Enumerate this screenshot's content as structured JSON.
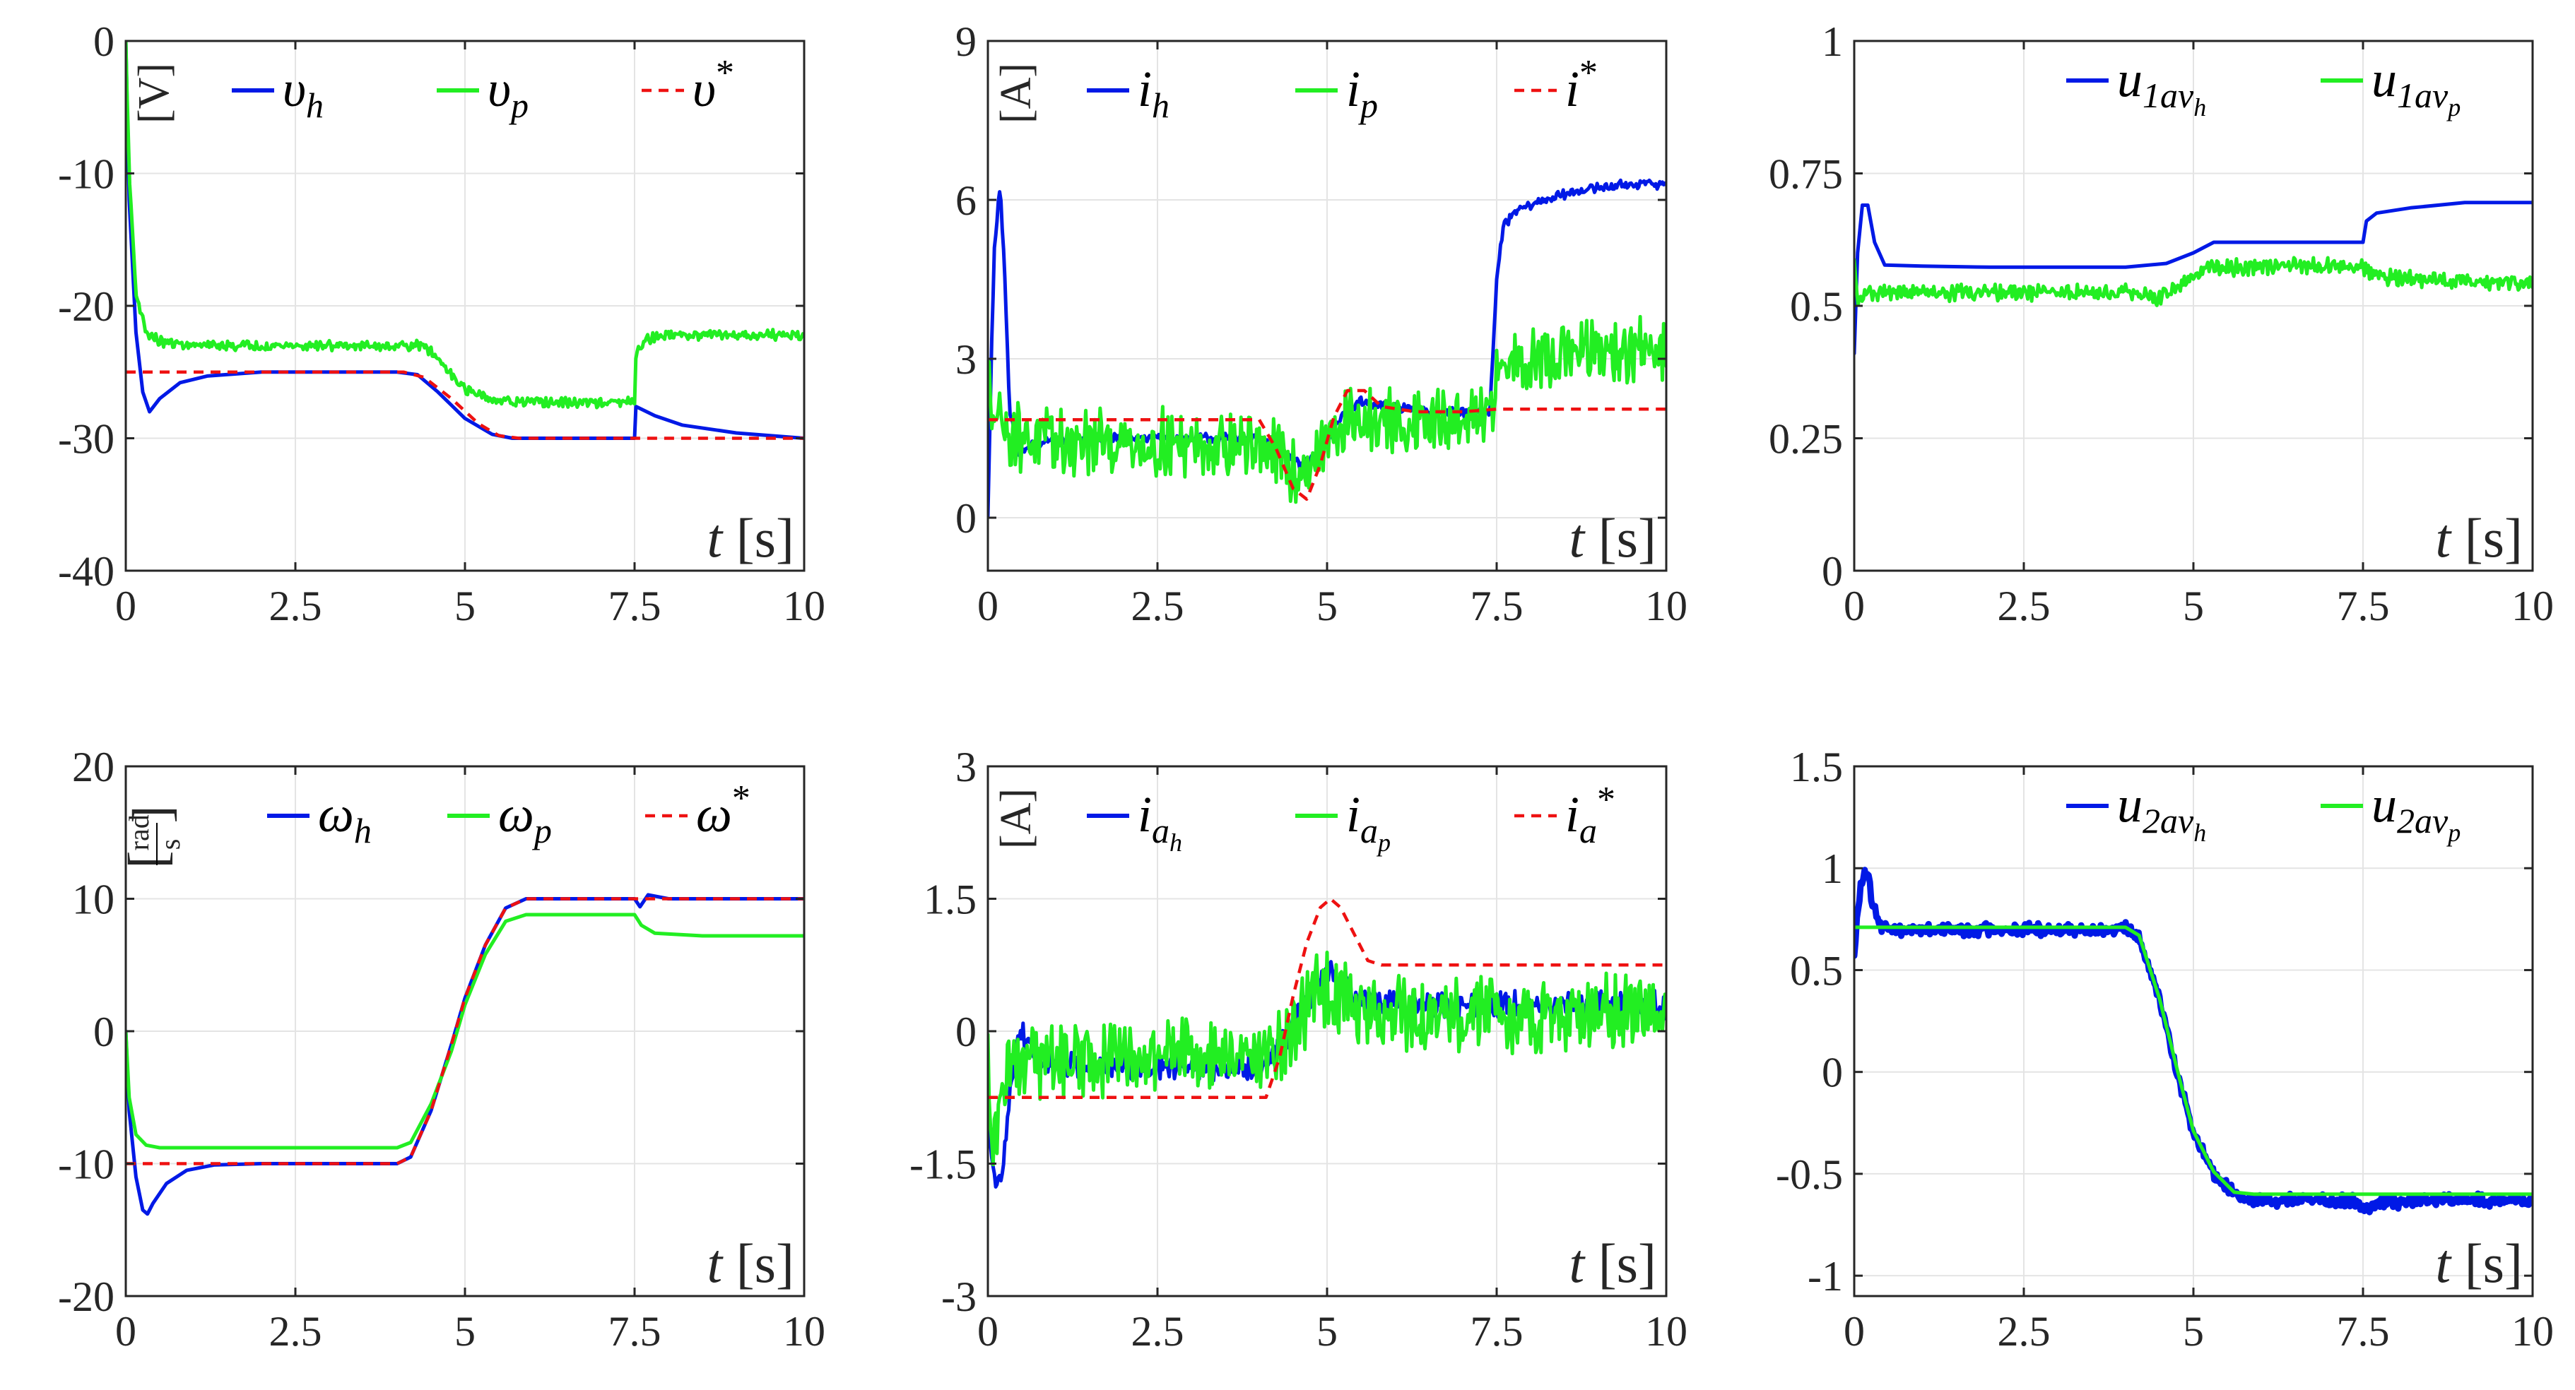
{
  "colors": {
    "h": "#0019e6",
    "p": "#22ee22",
    "ref": "#ee1111",
    "grid": "#e4e4e4",
    "axis": "#262626"
  },
  "chart_data": [
    {
      "type": "line",
      "id": "voltage",
      "ylabel": "[V]",
      "xlabel": "t [s]",
      "xlim": [
        0,
        10
      ],
      "ylim": [
        -40,
        0
      ],
      "xticks": [
        0,
        2.5,
        5,
        7.5,
        10
      ],
      "xtick_labels": [
        "0",
        "2.5",
        "5",
        "7.5",
        "10"
      ],
      "yticks": [
        0,
        -10,
        -20,
        -30,
        -40
      ],
      "ytick_labels": [
        "0",
        "-10",
        "-20",
        "-30",
        "-40"
      ],
      "legend": [
        "υ_h",
        "υ_p",
        "υ*"
      ],
      "series": [
        {
          "name": "υ_h",
          "key": "h",
          "x": [
            0,
            0.05,
            0.15,
            0.25,
            0.35,
            0.5,
            0.8,
            1.2,
            2,
            3,
            4,
            4.3,
            4.6,
            5,
            5.4,
            5.7,
            6,
            7,
            7.5,
            7.52,
            7.6,
            7.8,
            8.2,
            9,
            10
          ],
          "y": [
            0,
            -12,
            -22,
            -26.5,
            -28,
            -27,
            -25.8,
            -25.3,
            -25,
            -25,
            -25,
            -25.2,
            -26.5,
            -28.5,
            -29.7,
            -30,
            -30,
            -30,
            -30,
            -27.6,
            -27.8,
            -28.3,
            -29,
            -29.6,
            -30
          ]
        },
        {
          "name": "υ_p",
          "key": "p",
          "x": [
            0,
            0.05,
            0.15,
            0.3,
            0.5,
            1,
            2,
            3,
            4,
            4.4,
            4.7,
            5,
            5.3,
            5.7,
            6,
            7,
            7.5,
            7.52,
            7.7,
            8,
            9,
            10
          ],
          "y": [
            0,
            -10,
            -19,
            -22,
            -22.7,
            -23,
            -23,
            -23,
            -23,
            -23,
            -24.5,
            -26.3,
            -27,
            -27.3,
            -27.3,
            -27.3,
            -27.3,
            -23.5,
            -22.5,
            -22.2,
            -22.2,
            -22.2
          ],
          "noise": 0.3
        },
        {
          "name": "υ*",
          "key": "ref",
          "dashed": true,
          "x": [
            0,
            4.1,
            4.4,
            4.8,
            5.2,
            5.5,
            5.8,
            10
          ],
          "y": [
            -25,
            -25,
            -25.4,
            -27,
            -28.9,
            -29.8,
            -30,
            -30
          ]
        }
      ]
    },
    {
      "type": "line",
      "id": "current",
      "ylabel": "[A]",
      "xlabel": "t [s]",
      "xlim": [
        0,
        10
      ],
      "ylim": [
        -1,
        9
      ],
      "xticks": [
        0,
        2.5,
        5,
        7.5,
        10
      ],
      "xtick_labels": [
        "0",
        "2.5",
        "5",
        "7.5",
        "10"
      ],
      "yticks": [
        9,
        6,
        3,
        0
      ],
      "ytick_labels": [
        "9",
        "6",
        "3",
        "0"
      ],
      "legend": [
        "i_h",
        "i_p",
        "i*"
      ],
      "series": [
        {
          "name": "i_h",
          "key": "h",
          "x": [
            0,
            0.05,
            0.1,
            0.18,
            0.25,
            0.32,
            0.45,
            0.7,
            1.5,
            3,
            4,
            4.3,
            4.6,
            4.9,
            5.2,
            5.5,
            5.9,
            6.5,
            7.4,
            7.5,
            7.6,
            7.8,
            8.2,
            8.8,
            9.5,
            10
          ],
          "y": [
            0,
            3,
            5.2,
            6.3,
            4.5,
            2,
            1.2,
            1.4,
            1.5,
            1.5,
            1.5,
            1.3,
            1,
            1.2,
            1.9,
            2.2,
            2.1,
            2,
            2,
            4.5,
            5.5,
            5.8,
            6,
            6.2,
            6.3,
            6.3
          ],
          "noise": 0.07
        },
        {
          "name": "i_p",
          "key": "p",
          "x": [
            0,
            0.08,
            0.3,
            1,
            3,
            4,
            4.3,
            4.6,
            4.9,
            5.3,
            6,
            7.4,
            7.5,
            7.7,
            8.5,
            10
          ],
          "y": [
            2.5,
            2.2,
            1.6,
            1.4,
            1.4,
            1.4,
            1.1,
            0.8,
            1.3,
            1.8,
            1.8,
            1.8,
            2.7,
            3,
            3.1,
            3.1
          ],
          "noise": 0.5
        },
        {
          "name": "i*",
          "key": "ref",
          "dashed": true,
          "x": [
            0,
            4,
            4.25,
            4.5,
            4.7,
            4.9,
            5.1,
            5.3,
            5.55,
            5.8,
            6.3,
            7,
            7.5,
            10
          ],
          "y": [
            1.85,
            1.85,
            1.3,
            0.55,
            0.35,
            1,
            1.9,
            2.4,
            2.4,
            2.1,
            2,
            2,
            2.05,
            2.05
          ]
        }
      ]
    },
    {
      "type": "line",
      "id": "u1",
      "ylabel": "",
      "xlabel": "t [s]",
      "xlim": [
        0,
        10
      ],
      "ylim": [
        0,
        1
      ],
      "xticks": [
        0,
        2.5,
        5,
        7.5,
        10
      ],
      "xtick_labels": [
        "0",
        "2.5",
        "5",
        "7.5",
        "10"
      ],
      "yticks": [
        1,
        0.75,
        0.5,
        0.25,
        0
      ],
      "ytick_labels": [
        "1",
        "0.75",
        "0.5",
        "0.25",
        "0"
      ],
      "legend": [
        "u_1av_h",
        "u_1av_p"
      ],
      "series": [
        {
          "name": "u_1av_h",
          "key": "h",
          "x": [
            0,
            0.05,
            0.12,
            0.2,
            0.3,
            0.45,
            1,
            2,
            4,
            4.6,
            5,
            5.3,
            7,
            7.5,
            7.55,
            7.7,
            8.2,
            9,
            10
          ],
          "y": [
            0.41,
            0.6,
            0.69,
            0.69,
            0.62,
            0.577,
            0.575,
            0.573,
            0.573,
            0.58,
            0.6,
            0.62,
            0.62,
            0.62,
            0.66,
            0.675,
            0.685,
            0.695,
            0.695
          ]
        },
        {
          "name": "u_1av_p",
          "key": "p",
          "x": [
            0,
            0.05,
            0.12,
            0.3,
            1,
            4,
            4.5,
            4.8,
            5.2,
            6,
            7.5,
            7.7,
            8.5,
            10
          ],
          "y": [
            0.58,
            0.5,
            0.52,
            0.525,
            0.525,
            0.525,
            0.515,
            0.54,
            0.57,
            0.575,
            0.575,
            0.555,
            0.548,
            0.545
          ],
          "noise": 0.012
        }
      ]
    },
    {
      "type": "line",
      "id": "omega",
      "ylabel": "[rad/s]",
      "ylabel_num": "rad",
      "ylabel_den": "s",
      "xlabel": "t [s]",
      "xlim": [
        0,
        10
      ],
      "ylim": [
        -20,
        20
      ],
      "xticks": [
        0,
        2.5,
        5,
        7.5,
        10
      ],
      "xtick_labels": [
        "0",
        "2.5",
        "5",
        "7.5",
        "10"
      ],
      "yticks": [
        20,
        10,
        0,
        -10,
        -20
      ],
      "ytick_labels": [
        "20",
        "10",
        "0",
        "-10",
        "-20"
      ],
      "legend": [
        "ω_h",
        "ω_p",
        "ω*"
      ],
      "series": [
        {
          "name": "ω_h",
          "key": "h",
          "x": [
            0,
            0.05,
            0.15,
            0.25,
            0.32,
            0.4,
            0.6,
            0.9,
            1.3,
            2,
            3,
            4,
            4.2,
            4.5,
            4.8,
            5,
            5.3,
            5.6,
            5.9,
            6.5,
            7.4,
            7.5,
            7.58,
            7.7,
            8,
            9,
            10
          ],
          "y": [
            0,
            -6,
            -11,
            -13.5,
            -13.8,
            -13,
            -11.5,
            -10.5,
            -10.1,
            -10,
            -10,
            -10,
            -9.5,
            -6,
            -1,
            2.5,
            6.5,
            9.3,
            10,
            10,
            10,
            10,
            9.4,
            10.3,
            10,
            10,
            10
          ]
        },
        {
          "name": "ω_p",
          "key": "p",
          "x": [
            0,
            0.05,
            0.15,
            0.3,
            0.5,
            0.8,
            1.5,
            3,
            4,
            4.2,
            4.5,
            4.8,
            5,
            5.3,
            5.6,
            5.9,
            6.5,
            7.4,
            7.5,
            7.6,
            7.8,
            8.5,
            10
          ],
          "y": [
            0,
            -5,
            -7.8,
            -8.6,
            -8.8,
            -8.8,
            -8.8,
            -8.8,
            -8.8,
            -8.4,
            -5.5,
            -1.5,
            2,
            5.8,
            8.3,
            8.8,
            8.8,
            8.8,
            8.8,
            8,
            7.4,
            7.2,
            7.2
          ]
        },
        {
          "name": "ω*",
          "key": "ref",
          "dashed": true,
          "x": [
            0,
            0.3,
            0.5,
            4,
            4.2,
            4.5,
            4.8,
            5,
            5.3,
            5.6,
            5.9,
            10
          ],
          "y": [
            -10,
            -10,
            -10,
            -10,
            -9.5,
            -6,
            -1,
            2.5,
            6.5,
            9.3,
            10,
            10
          ]
        }
      ]
    },
    {
      "type": "line",
      "id": "current_a",
      "ylabel": "[A]",
      "xlabel": "t [s]",
      "xlim": [
        0,
        10
      ],
      "ylim": [
        -3,
        3
      ],
      "xticks": [
        0,
        2.5,
        5,
        7.5,
        10
      ],
      "xtick_labels": [
        "0",
        "2.5",
        "5",
        "7.5",
        "10"
      ],
      "yticks": [
        3,
        1.5,
        0,
        -1.5,
        -3
      ],
      "ytick_labels": [
        "3",
        "1.5",
        "0",
        "-1.5",
        "-3"
      ],
      "legend": [
        "i_a_h",
        "i_a_p",
        "i_a*"
      ],
      "series": [
        {
          "name": "i_a_h",
          "key": "h",
          "x": [
            0,
            0.05,
            0.12,
            0.2,
            0.3,
            0.4,
            0.5,
            0.7,
            1,
            2,
            3,
            4,
            4.3,
            4.6,
            4.8,
            5,
            5.2,
            5.5,
            6,
            7,
            8,
            10
          ],
          "y": [
            -0.8,
            -1.4,
            -1.75,
            -1.7,
            -0.9,
            -0.2,
            0,
            -0.3,
            -0.4,
            -0.4,
            -0.4,
            -0.4,
            -0.2,
            0.2,
            0.5,
            0.7,
            0.55,
            0.35,
            0.3,
            0.3,
            0.3,
            0.3
          ],
          "noise": 0.12
        },
        {
          "name": "i_a_p",
          "key": "p",
          "x": [
            0,
            0.05,
            0.15,
            0.3,
            0.6,
            1,
            2,
            3,
            4,
            4.3,
            4.6,
            4.8,
            5,
            5.2,
            5.5,
            6,
            7,
            8,
            10
          ],
          "y": [
            -0.3,
            -1.4,
            -0.9,
            -0.5,
            -0.35,
            -0.3,
            -0.3,
            -0.3,
            -0.3,
            -0.15,
            0.2,
            0.4,
            0.5,
            0.4,
            0.25,
            0.2,
            0.2,
            0.2,
            0.2
          ],
          "noise": 0.35
        },
        {
          "name": "i_a*",
          "key": "ref",
          "dashed": true,
          "x": [
            0,
            4.1,
            4.3,
            4.5,
            4.7,
            4.9,
            5.05,
            5.2,
            5.4,
            5.6,
            5.8,
            10
          ],
          "y": [
            -0.75,
            -0.75,
            -0.3,
            0.4,
            1,
            1.4,
            1.5,
            1.4,
            1.1,
            0.8,
            0.75,
            0.75
          ]
        }
      ]
    },
    {
      "type": "line",
      "id": "u2",
      "ylabel": "",
      "xlabel": "t [s]",
      "xlim": [
        0,
        10
      ],
      "ylim": [
        -1.1,
        1.5
      ],
      "xticks": [
        0,
        2.5,
        5,
        7.5,
        10
      ],
      "xtick_labels": [
        "0",
        "2.5",
        "5",
        "7.5",
        "10"
      ],
      "yticks": [
        1.5,
        1,
        0.5,
        0,
        -0.5,
        -1
      ],
      "ytick_labels": [
        "1.5",
        "1",
        "0.5",
        "0",
        "-0.5",
        "-1"
      ],
      "legend": [
        "u_2av_h",
        "u_2av_p"
      ],
      "series": [
        {
          "name": "u_2av_h",
          "key": "h",
          "thick": true,
          "x": [
            0,
            0.05,
            0.12,
            0.2,
            0.28,
            0.4,
            0.6,
            1,
            2,
            3,
            4,
            4.2,
            4.5,
            4.8,
            5,
            5.3,
            5.6,
            5.9,
            6.5,
            7.4,
            7.5,
            7.6,
            7.8,
            8.5,
            10
          ],
          "y": [
            0.55,
            0.8,
            0.95,
            0.97,
            0.8,
            0.72,
            0.7,
            0.7,
            0.7,
            0.7,
            0.7,
            0.66,
            0.35,
            -0.05,
            -0.3,
            -0.5,
            -0.6,
            -0.63,
            -0.63,
            -0.63,
            -0.68,
            -0.66,
            -0.64,
            -0.63,
            -0.63
          ],
          "noise": 0.025
        },
        {
          "name": "u_2av_p",
          "key": "p",
          "x": [
            0,
            1,
            2,
            3,
            4,
            4.2,
            4.5,
            4.8,
            5,
            5.3,
            5.6,
            5.9,
            6.5,
            8,
            10
          ],
          "y": [
            0.71,
            0.71,
            0.71,
            0.71,
            0.71,
            0.67,
            0.36,
            -0.04,
            -0.29,
            -0.49,
            -0.59,
            -0.6,
            -0.6,
            -0.6,
            -0.6
          ]
        }
      ]
    }
  ]
}
